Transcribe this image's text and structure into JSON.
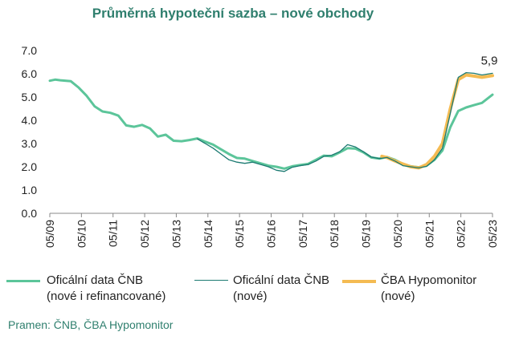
{
  "chart_data": {
    "type": "line",
    "title": "Průměrná hypoteční sazba – nové obchody",
    "x_tick_labels": [
      "05/09",
      "05/10",
      "05/11",
      "05/12",
      "05/13",
      "05/14",
      "05/15",
      "05/16",
      "05/17",
      "05/18",
      "05/19",
      "05/20",
      "05/21",
      "05/22",
      "05/23"
    ],
    "y_tick_labels": [
      "0.0",
      "1.0",
      "2.0",
      "3.0",
      "4.0",
      "5.0",
      "6.0",
      "7.0"
    ],
    "ylim": [
      0,
      7
    ],
    "xlim": [
      "2009-05",
      "2023-05"
    ],
    "grid": false,
    "annotation": "5,9",
    "series": [
      {
        "name_line1": "Oficální data ČNB",
        "name_line2": "(nové i refinancované)",
        "color": "#5cc59a",
        "x": [
          "2009-05",
          "2009-07",
          "2009-09",
          "2010-01",
          "2010-04",
          "2010-07",
          "2010-10",
          "2011-01",
          "2011-04",
          "2011-07",
          "2011-10",
          "2012-01",
          "2012-04",
          "2012-07",
          "2012-10",
          "2013-01",
          "2013-04",
          "2013-07",
          "2013-10",
          "2014-01",
          "2014-04",
          "2014-07",
          "2014-10",
          "2015-01",
          "2015-04",
          "2015-07",
          "2015-10",
          "2016-01",
          "2016-04",
          "2016-07",
          "2016-10",
          "2017-01",
          "2017-04",
          "2017-07",
          "2017-10",
          "2018-01",
          "2018-04",
          "2018-07",
          "2018-10",
          "2019-01",
          "2019-04",
          "2019-07",
          "2019-10",
          "2020-01",
          "2020-04",
          "2020-07",
          "2020-10",
          "2021-01",
          "2021-04",
          "2021-07",
          "2021-10",
          "2022-01",
          "2022-04",
          "2022-07",
          "2022-10",
          "2023-01",
          "2023-05"
        ],
        "y": [
          5.7,
          5.75,
          5.72,
          5.68,
          5.4,
          5.05,
          4.6,
          4.38,
          4.32,
          4.2,
          3.78,
          3.72,
          3.8,
          3.65,
          3.3,
          3.38,
          3.12,
          3.1,
          3.15,
          3.22,
          3.08,
          2.95,
          2.75,
          2.55,
          2.38,
          2.35,
          2.25,
          2.15,
          2.05,
          2.0,
          1.92,
          2.02,
          2.08,
          2.12,
          2.3,
          2.48,
          2.45,
          2.62,
          2.8,
          2.78,
          2.62,
          2.4,
          2.35,
          2.42,
          2.3,
          2.12,
          2.02,
          1.98,
          2.05,
          2.3,
          2.7,
          3.7,
          4.4,
          4.55,
          4.65,
          4.75,
          5.1
        ]
      },
      {
        "name_line1": "Oficální data ČNB",
        "name_line2": "(nové)",
        "color": "#1c7a72",
        "x": [
          "2014-01",
          "2014-04",
          "2014-07",
          "2014-10",
          "2015-01",
          "2015-04",
          "2015-07",
          "2015-10",
          "2016-01",
          "2016-04",
          "2016-07",
          "2016-10",
          "2017-01",
          "2017-04",
          "2017-07",
          "2017-10",
          "2018-01",
          "2018-04",
          "2018-07",
          "2018-10",
          "2019-01",
          "2019-04",
          "2019-07",
          "2019-10",
          "2020-01",
          "2020-04",
          "2020-07",
          "2020-10",
          "2021-01",
          "2021-04",
          "2021-07",
          "2021-10",
          "2022-01",
          "2022-04",
          "2022-07",
          "2022-10",
          "2023-01",
          "2023-05"
        ],
        "y": [
          3.2,
          3.0,
          2.8,
          2.55,
          2.3,
          2.2,
          2.15,
          2.2,
          2.1,
          2.0,
          1.85,
          1.8,
          1.98,
          2.05,
          2.1,
          2.25,
          2.45,
          2.5,
          2.65,
          2.95,
          2.85,
          2.65,
          2.42,
          2.35,
          2.4,
          2.25,
          2.05,
          2.0,
          1.95,
          2.02,
          2.3,
          2.8,
          4.3,
          5.85,
          6.05,
          6.02,
          5.95,
          6.02
        ]
      },
      {
        "name_line1": "ČBA Hypomonitor",
        "name_line2": "(nové)",
        "color": "#f4bb52",
        "x": [
          "2019-11",
          "2020-01",
          "2020-04",
          "2020-07",
          "2020-10",
          "2021-01",
          "2021-04",
          "2021-07",
          "2021-10",
          "2022-01",
          "2022-04",
          "2022-07",
          "2022-10",
          "2023-01",
          "2023-05"
        ],
        "y": [
          2.45,
          2.4,
          2.25,
          2.12,
          2.0,
          1.95,
          2.1,
          2.45,
          3.0,
          4.5,
          5.75,
          5.95,
          5.9,
          5.85,
          5.92
        ]
      }
    ]
  },
  "source": "Pramen: ČNB, ČBA Hypomonitor"
}
